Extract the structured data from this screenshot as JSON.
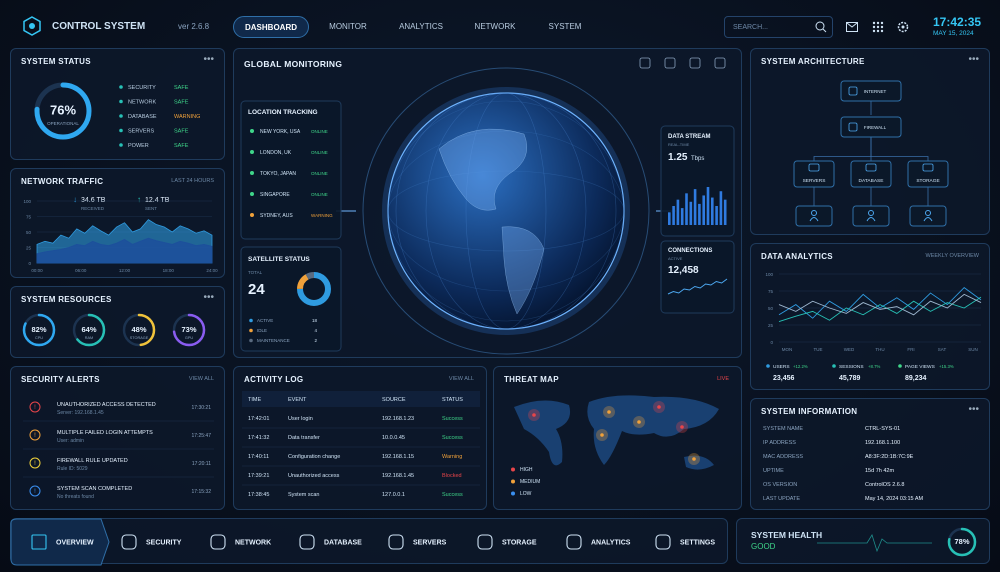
{
  "header": {
    "title": "CONTROL SYSTEM",
    "version": "ver 2.6.8",
    "nav": [
      "DASHBOARD",
      "MONITOR",
      "ANALYTICS",
      "NETWORK",
      "SYSTEM"
    ],
    "search": "SEARCH...",
    "time": "17:42:35",
    "date": "MAY 15, 2024"
  },
  "system_status": {
    "title": "SYSTEM STATUS",
    "gauge": {
      "value": 76,
      "label": "76%",
      "caption": "OPERATIONAL"
    },
    "items": [
      {
        "name": "SECURITY",
        "status": "SAFE",
        "color": "#3fd68a"
      },
      {
        "name": "NETWORK",
        "status": "SAFE",
        "color": "#3fd68a"
      },
      {
        "name": "DATABASE",
        "status": "WARNING",
        "color": "#f0a13a"
      },
      {
        "name": "SERVERS",
        "status": "SAFE",
        "color": "#3fd68a"
      },
      {
        "name": "POWER",
        "status": "SAFE",
        "color": "#3fd68a"
      }
    ]
  },
  "network_traffic": {
    "title": "NETWORK TRAFFIC",
    "period": "LAST 24 HOURS",
    "received": {
      "value": "34.6 TB",
      "label": "RECEIVED"
    },
    "sent": {
      "value": "12.4 TB",
      "label": "SENT"
    },
    "ylim": [
      0,
      100
    ],
    "yticks": [
      100,
      75,
      50,
      25,
      0
    ],
    "xticks": [
      "00:00",
      "06:00",
      "12:00",
      "18:00",
      "24:00"
    ],
    "series": [
      {
        "color": "#2f9be0",
        "values": [
          30,
          35,
          32,
          45,
          40,
          55,
          48,
          60,
          52,
          45,
          58,
          65,
          50,
          55,
          70,
          62,
          58,
          50,
          60,
          55,
          48,
          52,
          45
        ]
      },
      {
        "color": "#1d4f9c",
        "values": [
          15,
          18,
          20,
          22,
          25,
          30,
          28,
          35,
          30,
          28,
          32,
          38,
          30,
          35,
          40,
          36,
          33,
          30,
          35,
          32,
          28,
          30,
          27
        ]
      }
    ]
  },
  "system_resources": {
    "title": "SYSTEM RESOURCES",
    "items": [
      {
        "value": 82,
        "label": "82%",
        "name": "CPU",
        "color": "#2fa8f0"
      },
      {
        "value": 64,
        "label": "64%",
        "name": "RAM",
        "color": "#27c0b5"
      },
      {
        "value": 48,
        "label": "48%",
        "name": "STORAGE",
        "color": "#f0c23a"
      },
      {
        "value": 73,
        "label": "73%",
        "name": "GPU",
        "color": "#8a5cf0"
      }
    ]
  },
  "security_alerts": {
    "title": "SECURITY ALERTS",
    "action": "VIEW ALL",
    "items": [
      {
        "title": "UNAUTHORIZED ACCESS DETECTED",
        "detail": "Server: 192.168.1.45",
        "time": "17:30:21",
        "color": "#e8454a"
      },
      {
        "title": "MULTIPLE FAILED LOGIN ATTEMPTS",
        "detail": "User: admin",
        "time": "17:25:47",
        "color": "#f0a13a"
      },
      {
        "title": "FIREWALL RULE UPDATED",
        "detail": "Rule ID: 5029",
        "time": "17:20:11",
        "color": "#f0d23a"
      },
      {
        "title": "SYSTEM SCAN COMPLETED",
        "detail": "No threats found",
        "time": "17:15:32",
        "color": "#3a8ff0"
      }
    ]
  },
  "global_monitoring": {
    "title": "GLOBAL MONITORING",
    "location_tracking": {
      "title": "LOCATION TRACKING",
      "items": [
        {
          "city": "NEW YORK, USA",
          "status": "ONLINE",
          "color": "#3fd68a"
        },
        {
          "city": "LONDON, UK",
          "status": "ONLINE",
          "color": "#3fd68a"
        },
        {
          "city": "TOKYO, JAPAN",
          "status": "ONLINE",
          "color": "#3fd68a"
        },
        {
          "city": "SINGAPORE",
          "status": "ONLINE",
          "color": "#3fd68a"
        },
        {
          "city": "SYDNEY, AUS",
          "status": "WARNING",
          "color": "#f0a13a"
        }
      ]
    },
    "satellite_status": {
      "title": "SATELLITE STATUS",
      "total_label": "TOTAL",
      "total": "24",
      "segments": [
        {
          "name": "ACTIVE",
          "value": 18,
          "color": "#2f9be0"
        },
        {
          "name": "IDLE",
          "value": 4,
          "color": "#f0a13a"
        },
        {
          "name": "MAINTENANCE",
          "value": 2,
          "color": "#5a6b80"
        }
      ]
    },
    "data_stream": {
      "title": "DATA STREAM",
      "subtitle": "REAL-TIME",
      "value": "1.25",
      "unit": "Tbps",
      "bars": [
        30,
        45,
        60,
        40,
        75,
        55,
        85,
        50,
        70,
        90,
        65,
        45,
        80,
        60
      ]
    },
    "connections": {
      "title": "CONNECTIONS",
      "subtitle": "ACTIVE",
      "value": "12,458",
      "values": [
        20,
        25,
        22,
        30,
        28,
        35,
        32,
        40,
        38,
        45,
        42,
        50
      ]
    }
  },
  "activity_log": {
    "title": "ACTIVITY LOG",
    "action": "VIEW ALL",
    "columns": [
      "TIME",
      "EVENT",
      "SOURCE",
      "STATUS"
    ],
    "rows": [
      {
        "time": "17:42:01",
        "event": "User login",
        "source": "192.168.1.23",
        "status": "Success",
        "color": "#3fd68a"
      },
      {
        "time": "17:41:32",
        "event": "Data transfer",
        "source": "10.0.0.45",
        "status": "Success",
        "color": "#3fd68a"
      },
      {
        "time": "17:40:11",
        "event": "Configuration change",
        "source": "192.168.1.15",
        "status": "Warning",
        "color": "#f0a13a"
      },
      {
        "time": "17:39:21",
        "event": "Unauthorized access",
        "source": "192.168.1.45",
        "status": "Blocked",
        "color": "#e8454a"
      },
      {
        "time": "17:38:45",
        "event": "System scan",
        "source": "127.0.0.1",
        "status": "Success",
        "color": "#3fd68a"
      }
    ]
  },
  "threat_map": {
    "title": "THREAT MAP",
    "live": "LIVE",
    "levels": [
      {
        "name": "HIGH",
        "color": "#e8454a"
      },
      {
        "name": "MEDIUM",
        "color": "#f0a13a"
      },
      {
        "name": "LOW",
        "color": "#3a8ff0"
      }
    ]
  },
  "system_architecture": {
    "title": "SYSTEM ARCHITECTURE",
    "nodes": [
      "INTERNET",
      "FIREWALL",
      "SERVERS",
      "DATABASE",
      "STORAGE"
    ]
  },
  "data_analytics": {
    "title": "DATA ANALYTICS",
    "period": "WEEKLY OVERVIEW",
    "ylim": [
      0,
      100
    ],
    "yticks": [
      100,
      75,
      50,
      25,
      0
    ],
    "xticks": [
      "MON",
      "TUE",
      "WED",
      "THU",
      "FRI",
      "SAT",
      "SUN"
    ],
    "series": [
      {
        "color": "#2f9be0",
        "values": [
          40,
          55,
          35,
          60,
          45,
          70,
          50,
          65,
          48,
          72,
          55,
          80,
          62
        ]
      },
      {
        "color": "#27c0b5",
        "values": [
          30,
          38,
          45,
          32,
          50,
          40,
          55,
          42,
          60,
          45,
          58,
          50,
          66
        ]
      },
      {
        "color": "#9fb8d0",
        "values": [
          55,
          45,
          60,
          50,
          42,
          58,
          48,
          52,
          40,
          60,
          50,
          70,
          58
        ]
      }
    ],
    "stats": [
      {
        "name": "USERS",
        "change": "+12.2%",
        "value": "23,456",
        "color": "#2f9be0"
      },
      {
        "name": "SESSIONS",
        "change": "+8.7%",
        "value": "45,789",
        "color": "#27c0b5"
      },
      {
        "name": "PAGE VIEWS",
        "change": "+15.3%",
        "value": "89,234",
        "color": "#3fd68a"
      }
    ]
  },
  "system_information": {
    "title": "SYSTEM INFORMATION",
    "rows": [
      [
        "SYSTEM NAME",
        "CTRL-SYS-01"
      ],
      [
        "IP ADDRESS",
        "192.168.1.100"
      ],
      [
        "MAC ADDRESS",
        "A8:3F:2D:1B:7C:9E"
      ],
      [
        "UPTIME",
        "15d 7h 42m"
      ],
      [
        "OS VERSION",
        "ControlOS 2.6.8"
      ],
      [
        "LAST UPDATE",
        "May 14, 2024 03:15 AM"
      ]
    ]
  },
  "bottom_nav": [
    "OVERVIEW",
    "SECURITY",
    "NETWORK",
    "DATABASE",
    "SERVERS",
    "STORAGE",
    "ANALYTICS",
    "SETTINGS"
  ],
  "system_health": {
    "title": "SYSTEM HEALTH",
    "status": "GOOD",
    "value": 78,
    "label": "78%"
  }
}
